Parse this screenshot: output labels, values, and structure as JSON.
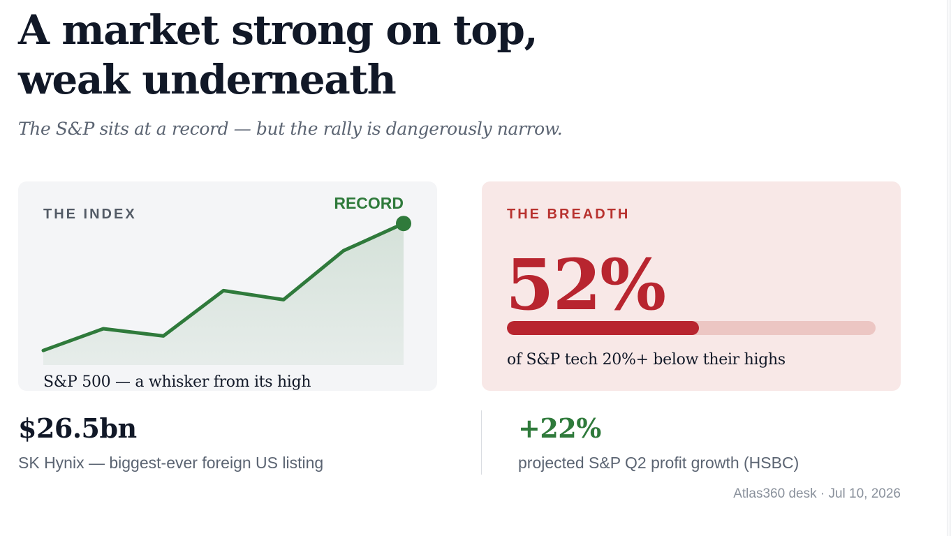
{
  "headline": {
    "line1": "A market strong on top,",
    "line2": "weak underneath"
  },
  "dek": "The S&P sits at a record — but the rally is dangerously narrow.",
  "index_card": {
    "kicker": "THE INDEX",
    "caption": "S&P 500 — a whisker from its high",
    "end_label": "RECORD"
  },
  "breadth_card": {
    "kicker": "THE BREADTH",
    "value_text": "52%",
    "fraction": 0.52,
    "caption": "of S&P tech 20%+ below their highs"
  },
  "stats": [
    {
      "value": "$26.5bn",
      "label": "SK Hynix — biggest-ever foreign US listing",
      "color": "#111827"
    },
    {
      "value": "+22%",
      "label": "projected S&P Q2 profit growth (HSBC)",
      "color": "#2f7a3b"
    }
  ],
  "footer": "Atlas360 desk · Jul 10, 2026",
  "colors": {
    "line": "#2f7a3b",
    "area": "#2f7a3b",
    "breadth": "#b8252f",
    "breadth_track": "#ecc6c3"
  },
  "chart_data": [
    {
      "type": "area",
      "title": "S&P 500 — a whisker from its high",
      "x": [
        0,
        1,
        2,
        3,
        4,
        5,
        6
      ],
      "values": [
        8,
        20,
        16,
        41,
        36,
        63,
        78
      ],
      "ylim": [
        0,
        80
      ],
      "grid": false,
      "annotations": [
        {
          "x": 6,
          "text": "RECORD"
        }
      ]
    },
    {
      "type": "bar",
      "title": "THE BREADTH",
      "categories": [
        "of S&P tech 20%+ below their highs"
      ],
      "values": [
        52
      ],
      "ylim": [
        0,
        100
      ]
    }
  ]
}
